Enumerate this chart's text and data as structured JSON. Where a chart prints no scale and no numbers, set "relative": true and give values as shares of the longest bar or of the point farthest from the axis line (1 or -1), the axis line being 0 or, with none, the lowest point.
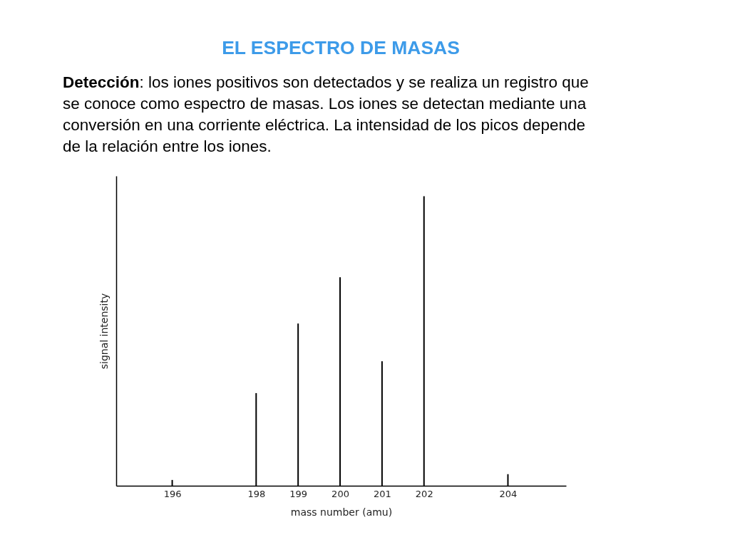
{
  "chart_data": {
    "type": "bar",
    "title": "EL ESPECTRO DE MASAS",
    "subtitle": "Detección: los iones positivos son detectados y se realiza un registro que se conoce como espectro de masas. Los iones se detectan mediante una conversión en una corriente eléctrica. La intensidad de los picos depende de la relación entre los iones.",
    "xlabel": "mass number (amu)",
    "ylabel": "signal intensity",
    "x": [
      196,
      198,
      199,
      200,
      201,
      202,
      204
    ],
    "values": [
      0.02,
      0.32,
      0.56,
      0.72,
      0.43,
      1,
      0.04
    ],
    "color": "#000000",
    "relative": true,
    "xlim": [
      194.75,
      205.3
    ],
    "xticks": [
      196,
      198,
      199,
      200,
      201,
      202,
      204
    ],
    "tick_labels": "x"
  }
}
